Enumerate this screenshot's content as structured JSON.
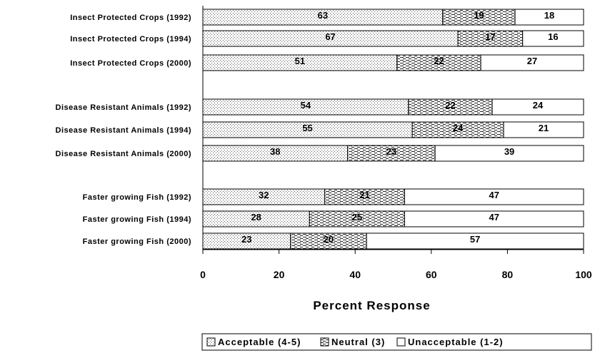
{
  "chart_data": {
    "type": "bar",
    "orientation": "horizontal",
    "stacked": true,
    "categories": [
      "Insect Protected Crops (1992)",
      "Insect Protected Crops (1994)",
      "Insect Protected Crops (2000)",
      "Disease Resistant Animals (1992)",
      "Disease Resistant Animals (1994)",
      "Disease Resistant Animals (2000)",
      "Faster growing Fish (1992)",
      "Faster growing Fish (1994)",
      "Faster growing Fish (2000)"
    ],
    "series": [
      {
        "name": "Acceptable (4-5)",
        "pattern": "dots",
        "values": [
          63,
          67,
          51,
          54,
          55,
          38,
          32,
          28,
          23
        ]
      },
      {
        "name": "Neutral (3)",
        "pattern": "dashes",
        "values": [
          19,
          17,
          22,
          22,
          24,
          23,
          21,
          25,
          20
        ]
      },
      {
        "name": "Unacceptable (1-2)",
        "pattern": "none",
        "values": [
          18,
          16,
          27,
          24,
          21,
          39,
          47,
          47,
          57
        ]
      }
    ],
    "xlabel": "Percent Response",
    "xlim": [
      0,
      100
    ],
    "xticks": [
      0,
      20,
      40,
      60,
      80,
      100
    ],
    "grid": false,
    "legend_position": "bottom-right"
  }
}
